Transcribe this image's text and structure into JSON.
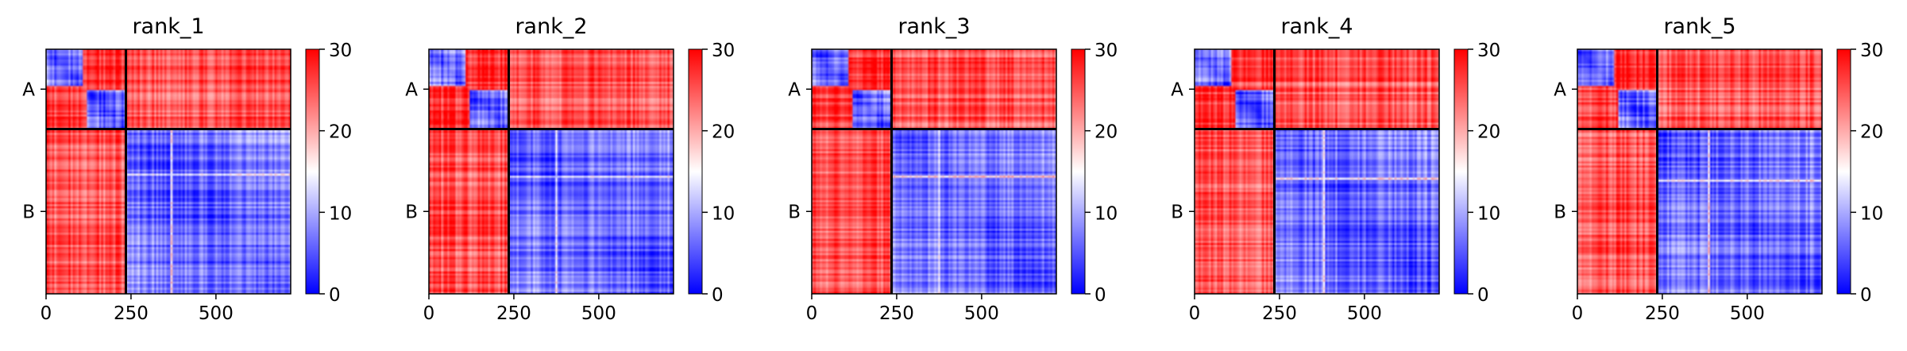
{
  "chart_data": [
    {
      "type": "heatmap",
      "title": "rank_1",
      "xticks": [
        0,
        250,
        500
      ],
      "xlim": [
        0,
        720
      ],
      "ylabels": [
        "A",
        "B"
      ],
      "chain_boundary": 235,
      "colorbar": {
        "min": 0,
        "max": 30,
        "ticks": [
          0,
          10,
          20,
          30
        ]
      },
      "colors": {
        "low": "#0000ff",
        "mid": "#ffffff",
        "high": "#ff0000"
      }
    },
    {
      "type": "heatmap",
      "title": "rank_2",
      "xticks": [
        0,
        250,
        500
      ],
      "xlim": [
        0,
        720
      ],
      "ylabels": [
        "A",
        "B"
      ],
      "chain_boundary": 235,
      "colorbar": {
        "min": 0,
        "max": 30,
        "ticks": [
          0,
          10,
          20,
          30
        ]
      },
      "colors": {
        "low": "#0000ff",
        "mid": "#ffffff",
        "high": "#ff0000"
      }
    },
    {
      "type": "heatmap",
      "title": "rank_3",
      "xticks": [
        0,
        250,
        500
      ],
      "xlim": [
        0,
        720
      ],
      "ylabels": [
        "A",
        "B"
      ],
      "chain_boundary": 235,
      "colorbar": {
        "min": 0,
        "max": 30,
        "ticks": [
          0,
          10,
          20,
          30
        ]
      },
      "colors": {
        "low": "#0000ff",
        "mid": "#ffffff",
        "high": "#ff0000"
      }
    },
    {
      "type": "heatmap",
      "title": "rank_4",
      "xticks": [
        0,
        250,
        500
      ],
      "xlim": [
        0,
        720
      ],
      "ylabels": [
        "A",
        "B"
      ],
      "chain_boundary": 235,
      "colorbar": {
        "min": 0,
        "max": 30,
        "ticks": [
          0,
          10,
          20,
          30
        ]
      },
      "colors": {
        "low": "#0000ff",
        "mid": "#ffffff",
        "high": "#ff0000"
      }
    },
    {
      "type": "heatmap",
      "title": "rank_5",
      "xticks": [
        0,
        250,
        500
      ],
      "xlim": [
        0,
        720
      ],
      "ylabels": [
        "A",
        "B"
      ],
      "chain_boundary": 235,
      "colorbar": {
        "min": 0,
        "max": 30,
        "ticks": [
          0,
          10,
          20,
          30
        ]
      },
      "colors": {
        "low": "#0000ff",
        "mid": "#ffffff",
        "high": "#ff0000"
      }
    }
  ]
}
